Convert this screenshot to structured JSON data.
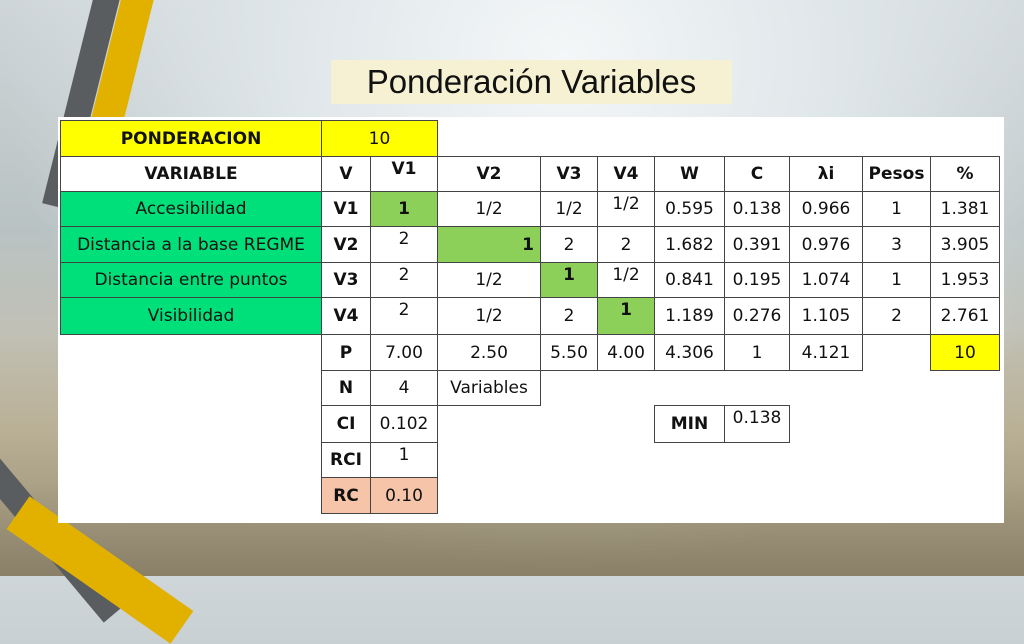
{
  "title": "Ponderación Variables",
  "ponderacion": {
    "label": "PONDERACION",
    "value": "10"
  },
  "header": [
    "VARIABLE",
    "V",
    "V1",
    "V2",
    "V3",
    "V4",
    "W",
    "C",
    "λi",
    "Pesos",
    "%"
  ],
  "rows": [
    {
      "name": "Accesibilidad",
      "code": "V1",
      "v1": "1",
      "v2": "1/2",
      "v3": "1/2",
      "v4": "1/2",
      "w": "0.595",
      "c": "0.138",
      "lambda": "0.966",
      "pesos": "1",
      "pct": "1.381"
    },
    {
      "name": "Distancia a la base REGME",
      "code": "V2",
      "v1": "2",
      "v2": "1",
      "v3": "2",
      "v4": "2",
      "w": "1.682",
      "c": "0.391",
      "lambda": "0.976",
      "pesos": "3",
      "pct": "3.905"
    },
    {
      "name": "Distancia entre puntos",
      "code": "V3",
      "v1": "2",
      "v2": "1/2",
      "v3": "1",
      "v4": "1/2",
      "w": "0.841",
      "c": "0.195",
      "lambda": "1.074",
      "pesos": "1",
      "pct": "1.953"
    },
    {
      "name": "Visibilidad",
      "code": "V4",
      "v1": "2",
      "v2": "1/2",
      "v3": "2",
      "v4": "1",
      "w": "1.189",
      "c": "0.276",
      "lambda": "1.105",
      "pesos": "2",
      "pct": "2.761"
    }
  ],
  "p_row": {
    "label": "P",
    "v1": "7.00",
    "v2": "2.50",
    "v3": "5.50",
    "v4": "4.00",
    "w": "4.306",
    "c": "1",
    "lambda": "4.121",
    "pct": "10"
  },
  "n_row": {
    "label": "N",
    "value": "4",
    "note": "Variables"
  },
  "ci_row": {
    "label": "CI",
    "value": "0.102"
  },
  "min": {
    "label": "MIN",
    "value": "0.138"
  },
  "rci_row": {
    "label": "RCI",
    "value": "1"
  },
  "rc_row": {
    "label": "RC",
    "value": "0.10"
  },
  "colors": {
    "header_yellow": "#ffff00",
    "variable_green": "#00e07a",
    "diagonal_green": "#8cd05a",
    "rc_salmon": "#f6c4a8",
    "title_bg": "#f5f1d2"
  }
}
